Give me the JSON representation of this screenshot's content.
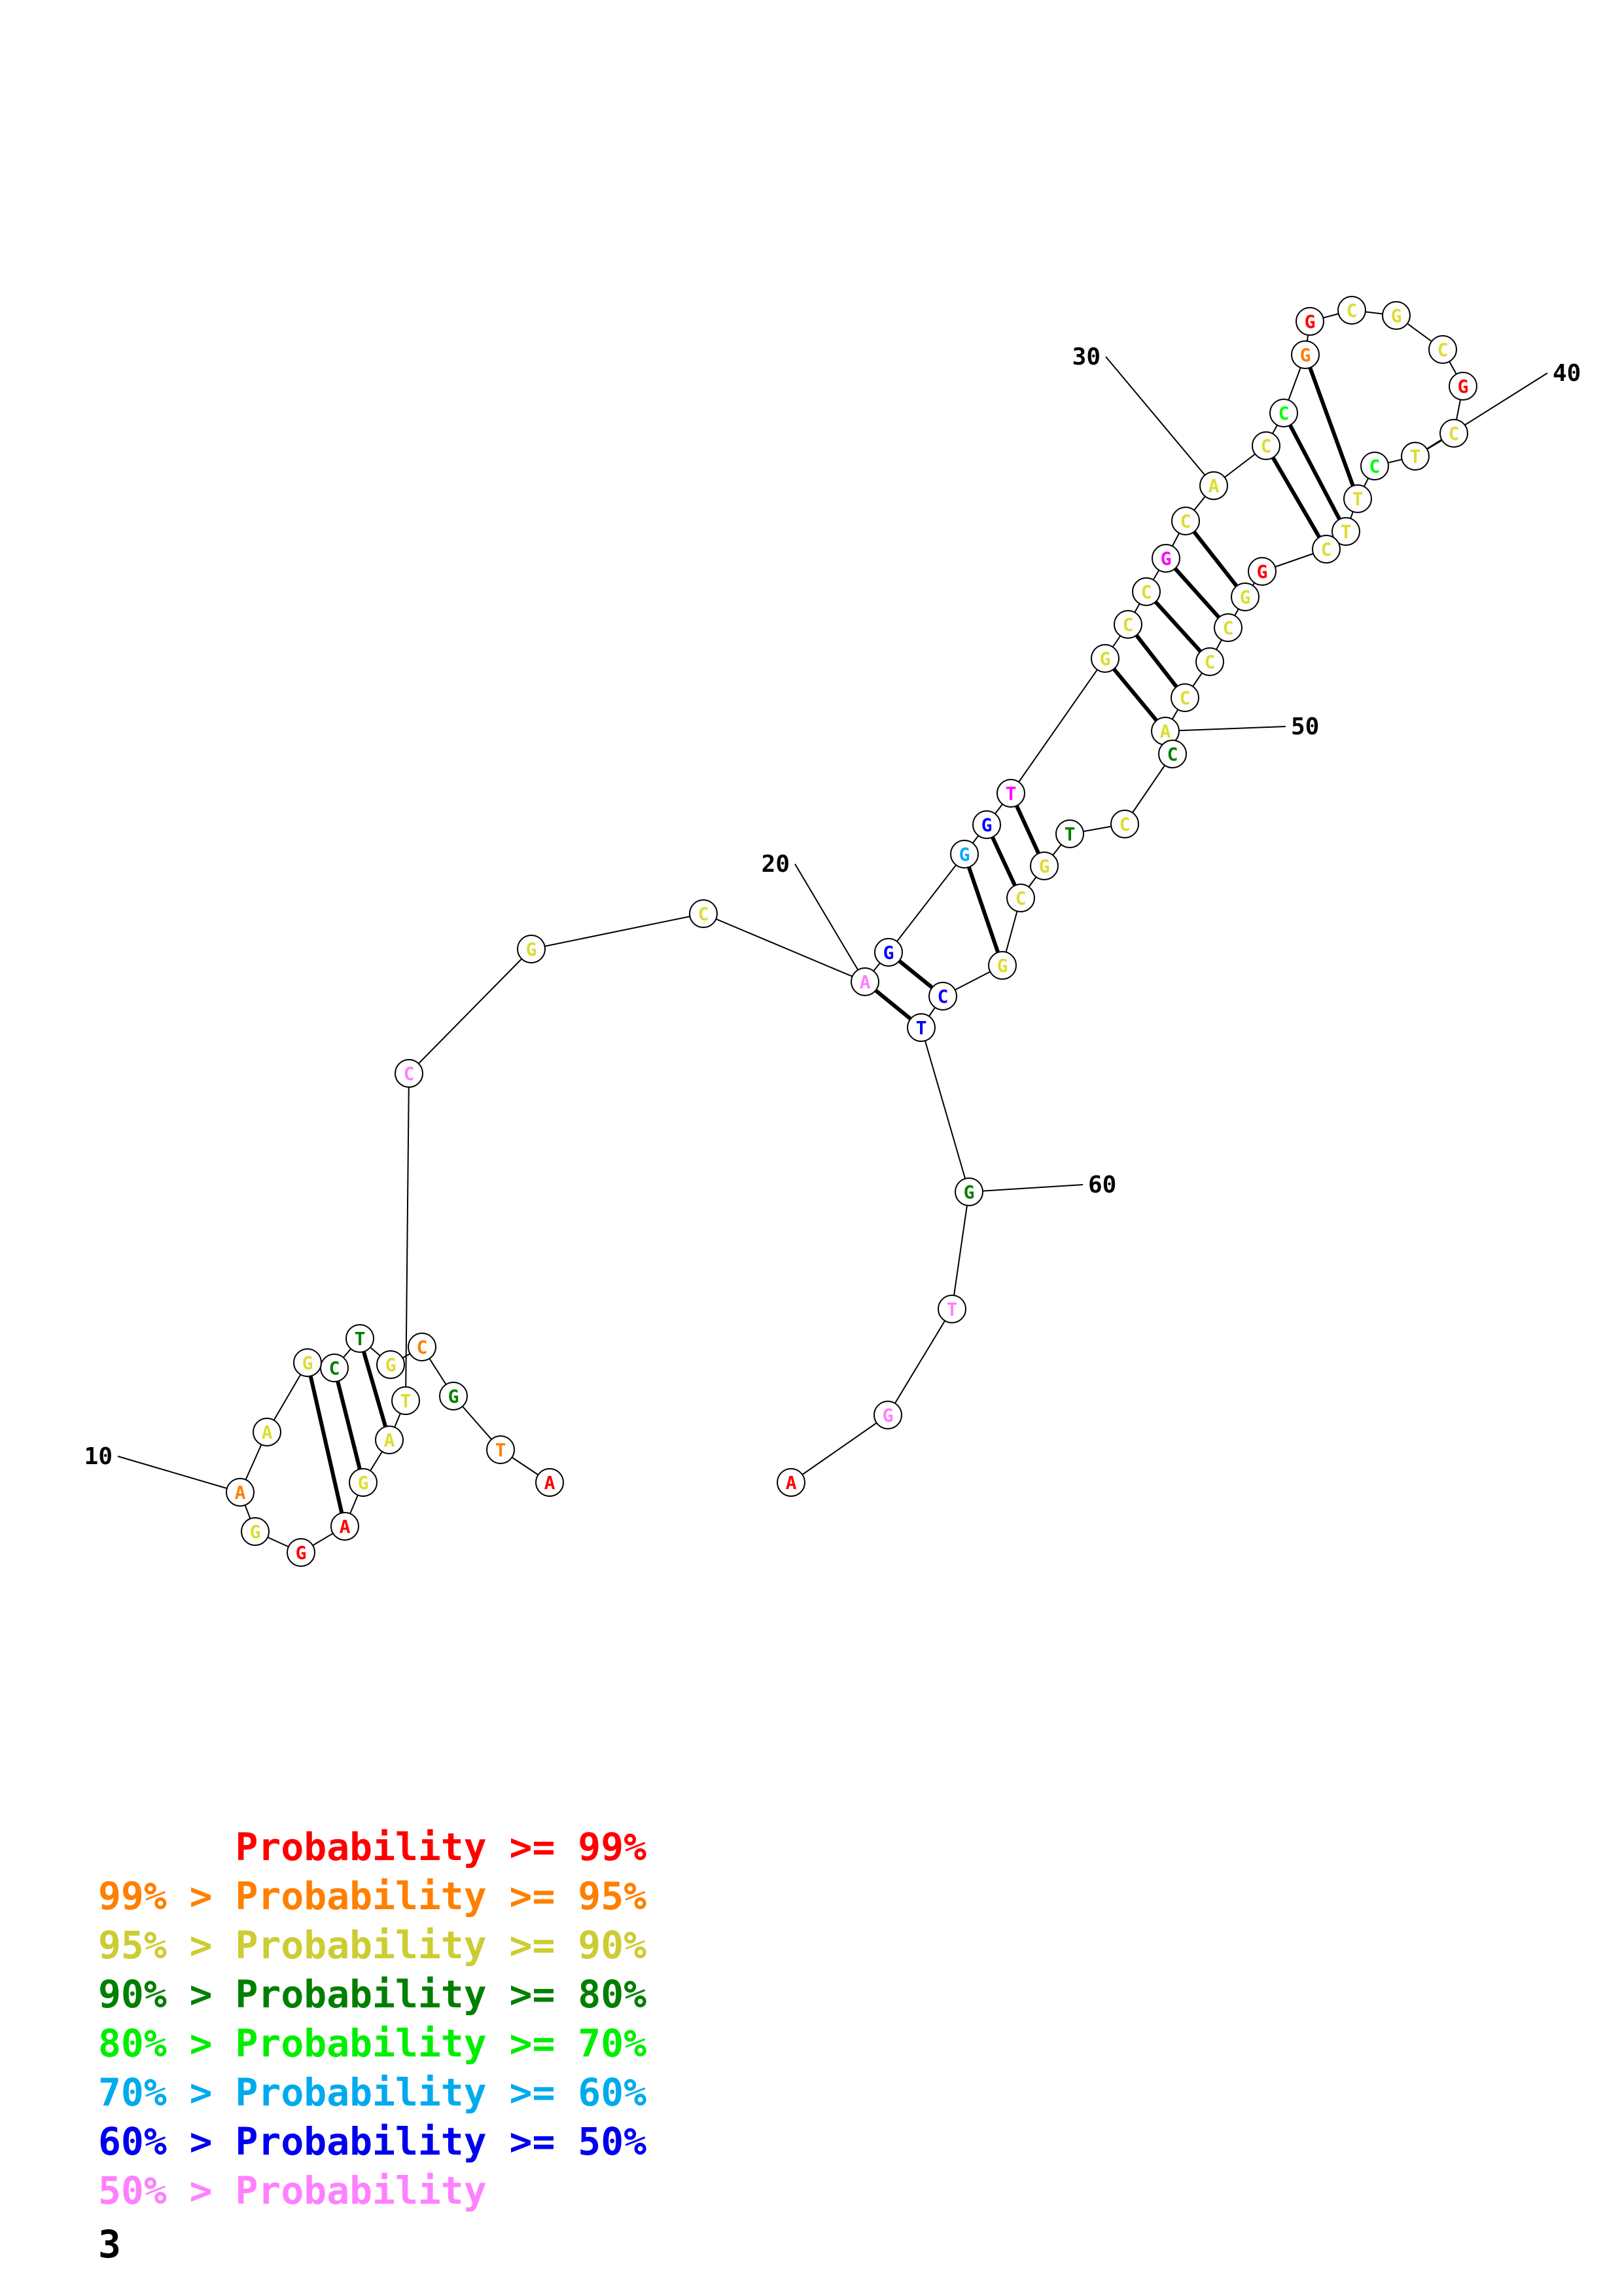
{
  "sequence": [
    "A",
    "T",
    "G",
    "C",
    "G",
    "T",
    "C",
    "G",
    "A",
    "A",
    "G",
    "G",
    "A",
    "G",
    "A",
    "T",
    "C",
    "G",
    "C",
    "A",
    "G",
    "G",
    "G",
    "T",
    "G",
    "C",
    "C",
    "G",
    "C",
    "A",
    "C",
    "C",
    "G",
    "G",
    "C",
    "G",
    "C",
    "G",
    "C",
    "T",
    "C",
    "T",
    "T",
    "C",
    "G",
    "G",
    "C",
    "C",
    "C",
    "A",
    "C",
    "C",
    "T",
    "G",
    "C",
    "G",
    "C",
    "T",
    "G",
    "T",
    "G",
    "A"
  ],
  "colors": [
    "#ff0000",
    "#ff7f00",
    "#008000",
    "#ff7f00",
    "#dddd33",
    "#008000",
    "#008000",
    "#dddd33",
    "#dddd33",
    "#ff7f00",
    "#dddd33",
    "#ff0000",
    "#ff0000",
    "#dddd33",
    "#dddd33",
    "#dddd33",
    "#ff80ff",
    "#dddd33",
    "#dddd33",
    "#ff80ff",
    "#0000ff",
    "#00aaff",
    "#0000ff",
    "#ff00ff",
    "#dddd33",
    "#dddd33",
    "#dddd33",
    "#ff00ff",
    "#dddd33",
    "#dddd33",
    "#dddd33",
    "#00ff00",
    "#ff7f00",
    "#ff0000",
    "#dddd33",
    "#dddd33",
    "#dddd33",
    "#ff0000",
    "#dddd33",
    "#dddd33",
    "#00ff00",
    "#dddd33",
    "#dddd33",
    "#dddd33",
    "#ff0000",
    "#dddd33",
    "#dddd33",
    "#dddd33",
    "#dddd33",
    "#dddd33",
    "#008000",
    "#dddd33",
    "#008000",
    "#dddd33",
    "#dddd33",
    "#dddd33",
    "#0000ff",
    "#0000ff",
    "#008000",
    "#ff80ff",
    "#ff80ff",
    "#ff0000"
  ],
  "position_labels": [
    "10",
    "20",
    "30",
    "40",
    "50",
    "60"
  ],
  "legend": [
    {
      "prefix": "    ",
      "text": "Probability >= 99%",
      "color": "#ff0000"
    },
    {
      "prefix": "99% > ",
      "text": "Probability >= 95%",
      "color": "#ff7f00"
    },
    {
      "prefix": "95% > ",
      "text": "Probability >= 90%",
      "color": "#cccc33"
    },
    {
      "prefix": "90% > ",
      "text": "Probability >= 80%",
      "color": "#007f00"
    },
    {
      "prefix": "80% > ",
      "text": "Probability >= 70%",
      "color": "#00ee00"
    },
    {
      "prefix": "70% > ",
      "text": "Probability >= 60%",
      "color": "#00aaee"
    },
    {
      "prefix": "60% > ",
      "text": "Probability >= 50%",
      "color": "#0000ee"
    },
    {
      "prefix": "50% > ",
      "text": "Probability",
      "color": "#ff80ff"
    }
  ],
  "page_number": "3"
}
